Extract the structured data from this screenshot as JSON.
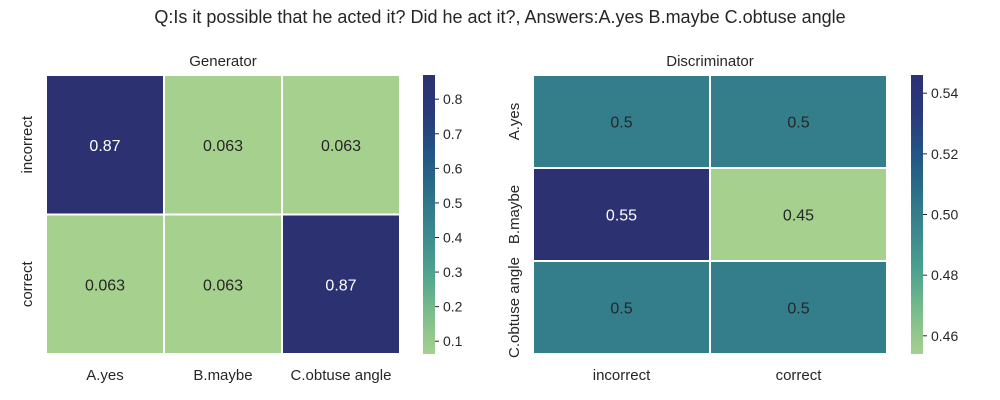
{
  "figure": {
    "suptitle": "Q:Is it possible that he acted it? Did he act it?, Answers:A.yes B.maybe C.obtuse angle"
  },
  "colors": {
    "background": "#ffffff",
    "cell_border": "#ffffff",
    "text_dark": "#262626",
    "text_light": "#ffffff",
    "colormap_crest": [
      "#a5d08e",
      "#7dbd8b",
      "#4ea38f",
      "#3d8a8e",
      "#2b7189",
      "#225586",
      "#2a3a7a",
      "#2c3172"
    ]
  },
  "chart_data": [
    {
      "type": "heatmap",
      "title": "Generator",
      "xlabel": "",
      "ylabel": "",
      "x_categories": [
        "A.yes",
        "B.maybe",
        "C.obtuse angle"
      ],
      "y_categories": [
        "incorrect",
        "correct"
      ],
      "values": [
        [
          0.87,
          0.063,
          0.063
        ],
        [
          0.063,
          0.063,
          0.87
        ]
      ],
      "cell_labels": [
        [
          "0.87",
          "0.063",
          "0.063"
        ],
        [
          "0.063",
          "0.063",
          "0.87"
        ]
      ],
      "colorbar": {
        "range": [
          0.063,
          0.87
        ],
        "ticks": [
          0.1,
          0.2,
          0.3,
          0.4,
          0.5,
          0.6,
          0.7,
          0.8
        ],
        "tick_labels": [
          "0.1",
          "0.2",
          "0.3",
          "0.4",
          "0.5",
          "0.6",
          "0.7",
          "0.8"
        ]
      },
      "grid": false
    },
    {
      "type": "heatmap",
      "title": "Discriminator",
      "xlabel": "",
      "ylabel": "",
      "x_categories": [
        "incorrect",
        "correct"
      ],
      "y_categories": [
        "A.yes",
        "B.maybe",
        "C.obtuse angle"
      ],
      "values": [
        [
          0.5,
          0.5
        ],
        [
          0.55,
          0.45
        ],
        [
          0.5,
          0.5
        ]
      ],
      "cell_labels": [
        [
          "0.5",
          "0.5"
        ],
        [
          "0.55",
          "0.45"
        ],
        [
          "0.5",
          "0.5"
        ]
      ],
      "colorbar": {
        "range": [
          0.454,
          0.546
        ],
        "ticks": [
          0.46,
          0.48,
          0.5,
          0.52,
          0.54
        ],
        "tick_labels": [
          "0.46",
          "0.48",
          "0.50",
          "0.52",
          "0.54"
        ]
      },
      "grid": false
    }
  ]
}
